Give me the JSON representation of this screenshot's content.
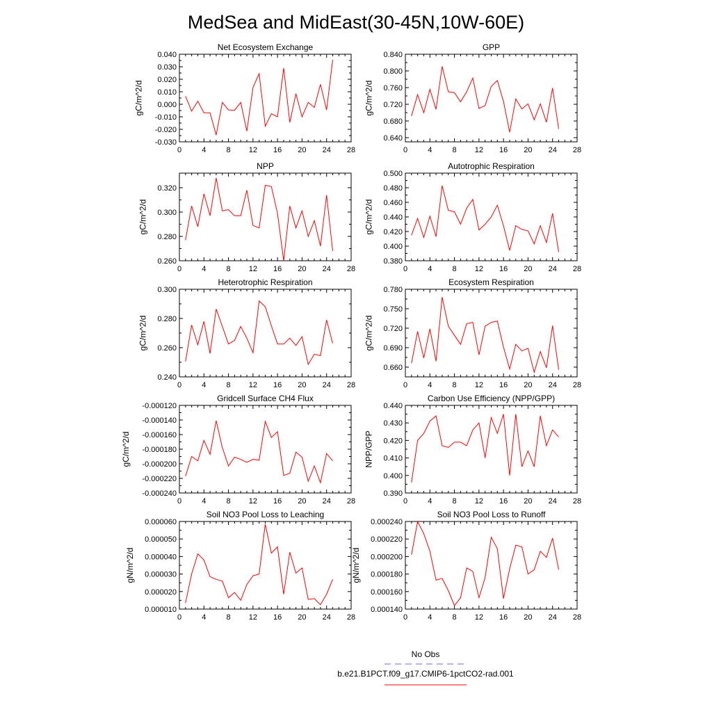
{
  "figure": {
    "title": "MedSea and MidEast(30-45N,10W-60E)"
  },
  "legend": {
    "entries": [
      {
        "label": "No Obs",
        "color": "#6666ff",
        "style": "dashed"
      },
      {
        "label": "b.e21.B1PCT.f09_g17.CMIP6-1pctCO2-rad.001",
        "color": "#ff0000",
        "style": "solid"
      }
    ]
  },
  "chart_data": [
    {
      "type": "line",
      "title": "Net Ecosystem Exchange",
      "ylabel": "gC/m^2/d",
      "xlim": [
        0,
        28
      ],
      "xticks": [
        0,
        4,
        8,
        12,
        16,
        20,
        24,
        28
      ],
      "ylim": [
        -0.03,
        0.04
      ],
      "yticks": [
        -0.03,
        -0.02,
        -0.01,
        0.0,
        0.01,
        0.02,
        0.03,
        0.04
      ],
      "ytick_labels": [
        "-0.030",
        "-0.020",
        "-0.010",
        "0.000",
        "0.010",
        "0.020",
        "0.030",
        "0.040"
      ],
      "series": [
        {
          "color": "#ff0000",
          "x": [
            1,
            2,
            3,
            4,
            5,
            6,
            7,
            8,
            9,
            10,
            11,
            12,
            13,
            14,
            15,
            16,
            17,
            18,
            19,
            20,
            21,
            22,
            23,
            24,
            25
          ],
          "y": [
            0.0065,
            -0.0055,
            0.0025,
            -0.0068,
            -0.0068,
            -0.0245,
            0.0015,
            -0.0045,
            -0.0048,
            0.0015,
            -0.0215,
            0.0135,
            0.0245,
            -0.0175,
            -0.0075,
            -0.01,
            0.029,
            -0.0145,
            0.0085,
            -0.01,
            0.0015,
            -0.0025,
            0.016,
            -0.0045,
            0.0355
          ]
        }
      ]
    },
    {
      "type": "line",
      "title": "GPP",
      "ylabel": "gC/m^2/d",
      "xlim": [
        0,
        28
      ],
      "xticks": [
        0,
        4,
        8,
        12,
        16,
        20,
        24,
        28
      ],
      "ylim": [
        0.63,
        0.84
      ],
      "yticks": [
        0.64,
        0.68,
        0.72,
        0.76,
        0.8,
        0.84
      ],
      "ytick_labels": [
        "0.640",
        "0.680",
        "0.720",
        "0.760",
        "0.800",
        "0.840"
      ],
      "series": [
        {
          "color": "#ff0000",
          "x": [
            1,
            2,
            3,
            4,
            5,
            6,
            7,
            8,
            9,
            10,
            11,
            12,
            13,
            14,
            15,
            16,
            17,
            18,
            19,
            20,
            21,
            22,
            23,
            24,
            25
          ],
          "y": [
            0.692,
            0.743,
            0.7,
            0.756,
            0.708,
            0.811,
            0.75,
            0.748,
            0.726,
            0.75,
            0.783,
            0.71,
            0.717,
            0.763,
            0.777,
            0.727,
            0.653,
            0.733,
            0.709,
            0.721,
            0.683,
            0.721,
            0.677,
            0.759,
            0.661
          ]
        }
      ]
    },
    {
      "type": "line",
      "title": "NPP",
      "ylabel": "gC/m^2/d",
      "xlim": [
        0,
        28
      ],
      "xticks": [
        0,
        4,
        8,
        12,
        16,
        20,
        24,
        28
      ],
      "ylim": [
        0.26,
        0.332
      ],
      "yticks": [
        0.26,
        0.28,
        0.3,
        0.32
      ],
      "ytick_labels": [
        "0.260",
        "0.280",
        "0.300",
        "0.320"
      ],
      "series": [
        {
          "color": "#ff0000",
          "x": [
            1,
            2,
            3,
            4,
            5,
            6,
            7,
            8,
            9,
            10,
            11,
            12,
            13,
            14,
            15,
            16,
            17,
            18,
            19,
            20,
            21,
            22,
            23,
            24,
            25
          ],
          "y": [
            0.277,
            0.305,
            0.288,
            0.315,
            0.297,
            0.328,
            0.301,
            0.302,
            0.297,
            0.297,
            0.318,
            0.289,
            0.287,
            0.322,
            0.321,
            0.299,
            0.26,
            0.305,
            0.287,
            0.301,
            0.28,
            0.293,
            0.272,
            0.314,
            0.268
          ]
        }
      ]
    },
    {
      "type": "line",
      "title": "Autotrophic Respiration",
      "ylabel": "gC/m^2/d",
      "xlim": [
        0,
        28
      ],
      "xticks": [
        0,
        4,
        8,
        12,
        16,
        20,
        24,
        28
      ],
      "ylim": [
        0.38,
        0.5
      ],
      "yticks": [
        0.38,
        0.4,
        0.42,
        0.44,
        0.46,
        0.48,
        0.5
      ],
      "ytick_labels": [
        "0.380",
        "0.400",
        "0.420",
        "0.440",
        "0.460",
        "0.480",
        "0.500"
      ],
      "series": [
        {
          "color": "#ff0000",
          "x": [
            1,
            2,
            3,
            4,
            5,
            6,
            7,
            8,
            9,
            10,
            11,
            12,
            13,
            14,
            15,
            16,
            17,
            18,
            19,
            20,
            21,
            22,
            23,
            24,
            25
          ],
          "y": [
            0.415,
            0.438,
            0.412,
            0.441,
            0.413,
            0.483,
            0.449,
            0.447,
            0.43,
            0.452,
            0.464,
            0.422,
            0.43,
            0.44,
            0.456,
            0.428,
            0.394,
            0.428,
            0.423,
            0.421,
            0.403,
            0.428,
            0.405,
            0.445,
            0.392
          ]
        }
      ]
    },
    {
      "type": "line",
      "title": "Heterotrophic Respiration",
      "ylabel": "gC/m^2/d",
      "xlim": [
        0,
        28
      ],
      "xticks": [
        0,
        4,
        8,
        12,
        16,
        20,
        24,
        28
      ],
      "ylim": [
        0.24,
        0.3
      ],
      "yticks": [
        0.24,
        0.26,
        0.28,
        0.3
      ],
      "ytick_labels": [
        "0.240",
        "0.260",
        "0.280",
        "0.300"
      ],
      "series": [
        {
          "color": "#ff0000",
          "x": [
            1,
            2,
            3,
            4,
            5,
            6,
            7,
            8,
            9,
            10,
            11,
            12,
            13,
            14,
            15,
            16,
            17,
            18,
            19,
            20,
            21,
            22,
            23,
            24,
            25
          ],
          "y": [
            0.2505,
            0.2755,
            0.262,
            0.278,
            0.256,
            0.2865,
            0.2745,
            0.2625,
            0.265,
            0.2745,
            0.2665,
            0.2565,
            0.292,
            0.288,
            0.275,
            0.2625,
            0.2625,
            0.2665,
            0.2615,
            0.2675,
            0.2485,
            0.2555,
            0.2545,
            0.279,
            0.263
          ]
        }
      ]
    },
    {
      "type": "line",
      "title": "Ecosystem Respiration",
      "ylabel": "gC/m^2/d",
      "xlim": [
        0,
        28
      ],
      "xticks": [
        0,
        4,
        8,
        12,
        16,
        20,
        24,
        28
      ],
      "ylim": [
        0.645,
        0.78
      ],
      "yticks": [
        0.66,
        0.69,
        0.72,
        0.75,
        0.78
      ],
      "ytick_labels": [
        "0.660",
        "0.690",
        "0.720",
        "0.750",
        "0.780"
      ],
      "series": [
        {
          "color": "#ff0000",
          "x": [
            1,
            2,
            3,
            4,
            5,
            6,
            7,
            8,
            9,
            10,
            11,
            12,
            13,
            14,
            15,
            16,
            17,
            18,
            19,
            20,
            21,
            22,
            23,
            24,
            25
          ],
          "y": [
            0.666,
            0.715,
            0.674,
            0.719,
            0.669,
            0.768,
            0.723,
            0.709,
            0.695,
            0.727,
            0.729,
            0.679,
            0.723,
            0.729,
            0.731,
            0.691,
            0.657,
            0.695,
            0.685,
            0.689,
            0.652,
            0.684,
            0.659,
            0.724,
            0.656
          ]
        }
      ]
    },
    {
      "type": "line",
      "title": "Gridcell Surface CH4 Flux",
      "ylabel": "gC/m^2/d",
      "xlim": [
        0,
        28
      ],
      "xticks": [
        0,
        4,
        8,
        12,
        16,
        20,
        24,
        28
      ],
      "ylim": [
        -0.00024,
        -0.00012
      ],
      "yticks": [
        -0.00024,
        -0.00022,
        -0.0002,
        -0.00018,
        -0.00016,
        -0.00014,
        -0.00012
      ],
      "ytick_labels": [
        "-0.000240",
        "-0.000220",
        "-0.000200",
        "-0.000180",
        "-0.000160",
        "-0.000140",
        "-0.000120"
      ],
      "series": [
        {
          "color": "#ff0000",
          "x": [
            1,
            2,
            3,
            4,
            5,
            6,
            7,
            8,
            9,
            10,
            11,
            12,
            13,
            14,
            15,
            16,
            17,
            18,
            19,
            20,
            21,
            22,
            23,
            24,
            25
          ],
          "y": [
            -0.000217,
            -0.00019,
            -0.000196,
            -0.000168,
            -0.000187,
            -0.000141,
            -0.000178,
            -0.000203,
            -0.000191,
            -0.000194,
            -0.000198,
            -0.000194,
            -0.000195,
            -0.000142,
            -0.000164,
            -0.000156,
            -0.000216,
            -0.000213,
            -0.000184,
            -0.000191,
            -0.000224,
            -0.000203,
            -0.000226,
            -0.000186,
            -0.000196
          ]
        }
      ]
    },
    {
      "type": "line",
      "title": "Carbon Use Efficiency (NPP/GPP)",
      "ylabel": "NPP/GPP",
      "xlim": [
        0,
        28
      ],
      "xticks": [
        0,
        4,
        8,
        12,
        16,
        20,
        24,
        28
      ],
      "ylim": [
        0.39,
        0.44
      ],
      "yticks": [
        0.39,
        0.4,
        0.41,
        0.42,
        0.43,
        0.44
      ],
      "ytick_labels": [
        "0.390",
        "0.400",
        "0.410",
        "0.420",
        "0.430",
        "0.440"
      ],
      "series": [
        {
          "color": "#ff0000",
          "x": [
            1,
            2,
            3,
            4,
            5,
            6,
            7,
            8,
            9,
            10,
            11,
            12,
            13,
            14,
            15,
            16,
            17,
            18,
            19,
            20,
            21,
            22,
            23,
            24,
            25
          ],
          "y": [
            0.396,
            0.42,
            0.424,
            0.431,
            0.434,
            0.417,
            0.416,
            0.419,
            0.419,
            0.417,
            0.426,
            0.43,
            0.41,
            0.433,
            0.424,
            0.435,
            0.4,
            0.435,
            0.405,
            0.414,
            0.405,
            0.434,
            0.417,
            0.426,
            0.422
          ]
        }
      ]
    },
    {
      "type": "line",
      "title": "Soil NO3 Pool Loss to Leaching",
      "ylabel": "gN/m^2/d",
      "xlim": [
        0,
        28
      ],
      "xticks": [
        0,
        4,
        8,
        12,
        16,
        20,
        24,
        28
      ],
      "ylim": [
        1e-05,
        6e-05
      ],
      "yticks": [
        1e-05,
        2e-05,
        3e-05,
        4e-05,
        5e-05,
        6e-05
      ],
      "ytick_labels": [
        "0.000010",
        "0.000020",
        "0.000030",
        "0.000040",
        "0.000050",
        "0.000060"
      ],
      "series": [
        {
          "color": "#ff0000",
          "x": [
            1,
            2,
            3,
            4,
            5,
            6,
            7,
            8,
            9,
            10,
            11,
            12,
            13,
            14,
            15,
            16,
            17,
            18,
            19,
            20,
            21,
            22,
            23,
            24,
            25
          ],
          "y": [
            1.35e-05,
            3e-05,
            4.15e-05,
            3.8e-05,
            2.85e-05,
            2.7e-05,
            2.6e-05,
            1.65e-05,
            1.95e-05,
            1.5e-05,
            2.4e-05,
            2.9e-05,
            3e-05,
            5.85e-05,
            4.2e-05,
            4.55e-05,
            1.85e-05,
            4.25e-05,
            3.05e-05,
            3.35e-05,
            1.55e-05,
            1.6e-05,
            1.25e-05,
            1.85e-05,
            2.7e-05
          ]
        }
      ]
    },
    {
      "type": "line",
      "title": "Soil NO3 Pool Loss to Runoff",
      "ylabel": "gN/m^2/d",
      "xlim": [
        0,
        28
      ],
      "xticks": [
        0,
        4,
        8,
        12,
        16,
        20,
        24,
        28
      ],
      "ylim": [
        0.00014,
        0.00024
      ],
      "yticks": [
        0.00014,
        0.00016,
        0.00018,
        0.0002,
        0.00022,
        0.00024
      ],
      "ytick_labels": [
        "0.000140",
        "0.000160",
        "0.000180",
        "0.000200",
        "0.000220",
        "0.000240"
      ],
      "series": [
        {
          "color": "#ff0000",
          "x": [
            1,
            2,
            3,
            4,
            5,
            6,
            7,
            8,
            9,
            10,
            11,
            12,
            13,
            14,
            15,
            16,
            17,
            18,
            19,
            20,
            21,
            22,
            23,
            24,
            25
          ],
          "y": [
            0.000202,
            0.00024,
            0.000226,
            0.000206,
            0.000173,
            0.000175,
            0.000161,
            0.000144,
            0.000153,
            0.000187,
            0.000183,
            0.000153,
            0.000176,
            0.000222,
            0.000209,
            0.000152,
            0.000186,
            0.000213,
            0.000211,
            0.00018,
            0.000185,
            0.000206,
            0.000199,
            0.000221,
            0.000185
          ]
        }
      ]
    }
  ]
}
